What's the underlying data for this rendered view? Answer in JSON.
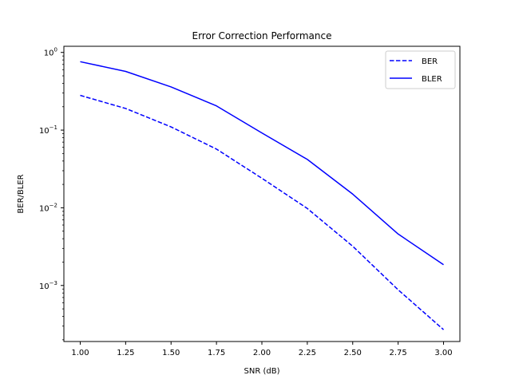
{
  "chart_data": {
    "type": "line",
    "title": "Error Correction Performance",
    "xlabel": "SNR (dB)",
    "ylabel": "BER/BLER",
    "xlim": [
      0.91,
      3.09
    ],
    "ylim": [
      0.00019,
      1.2
    ],
    "yscale": "log",
    "grid": false,
    "legend": "top-right",
    "x_ticks": [
      "1.00",
      "1.25",
      "1.50",
      "1.75",
      "2.00",
      "2.25",
      "2.50",
      "2.75",
      "3.00"
    ],
    "x_tick_values": [
      1.0,
      1.25,
      1.5,
      1.75,
      2.0,
      2.25,
      2.5,
      2.75,
      3.0
    ],
    "y_ticks": [
      {
        "base": "10",
        "exp": "0",
        "value": 1
      },
      {
        "base": "10",
        "exp": "−1",
        "value": 0.1
      },
      {
        "base": "10",
        "exp": "−2",
        "value": 0.01
      },
      {
        "base": "10",
        "exp": "−3",
        "value": 0.001
      }
    ],
    "x": [
      1.0,
      1.25,
      1.5,
      1.75,
      2.0,
      2.25,
      2.5,
      2.75,
      3.0
    ],
    "series": [
      {
        "name": "BER",
        "color": "#0000ff",
        "style": "dashed",
        "values": [
          0.28,
          0.19,
          0.11,
          0.057,
          0.024,
          0.0098,
          0.0032,
          0.00088,
          0.00027
        ]
      },
      {
        "name": "BLER",
        "color": "#0000ff",
        "style": "solid",
        "values": [
          0.76,
          0.57,
          0.36,
          0.205,
          0.092,
          0.042,
          0.015,
          0.0046,
          0.00185
        ]
      }
    ]
  }
}
